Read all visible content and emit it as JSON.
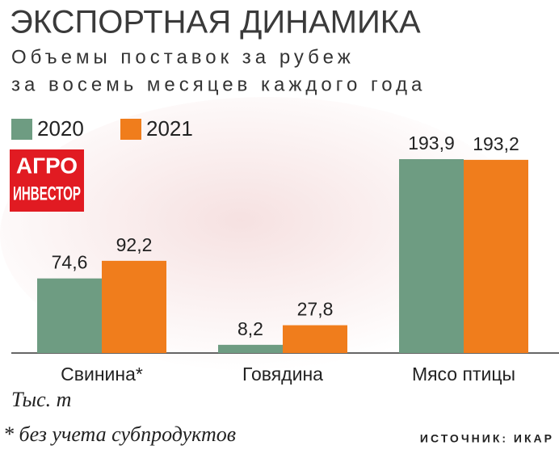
{
  "chart_data": {
    "type": "bar",
    "title": "ЭКСПОРТНАЯ ДИНАМИКА",
    "subtitle": [
      "Объемы поставок за рубеж",
      "за восемь месяцев каждого года"
    ],
    "logo": [
      "АГРО",
      "ИНВЕСТОР"
    ],
    "categories": [
      "Свинина*",
      "Говядина",
      "Мясо птицы"
    ],
    "series": [
      {
        "name": "2020",
        "color": "#6e9c82",
        "values": [
          74.6,
          8.2,
          193.9
        ],
        "value_labels": [
          "74,6",
          "8,2",
          "193,9"
        ]
      },
      {
        "name": "2021",
        "color": "#f07d1c",
        "values": [
          92.2,
          27.8,
          193.2
        ],
        "value_labels": [
          "92,2",
          "27,8",
          "193,2"
        ]
      }
    ],
    "unit": "Тыс. т",
    "footnote": "* без учета субпродуктов",
    "source": "ИСТОЧНИК: ИКАР"
  }
}
